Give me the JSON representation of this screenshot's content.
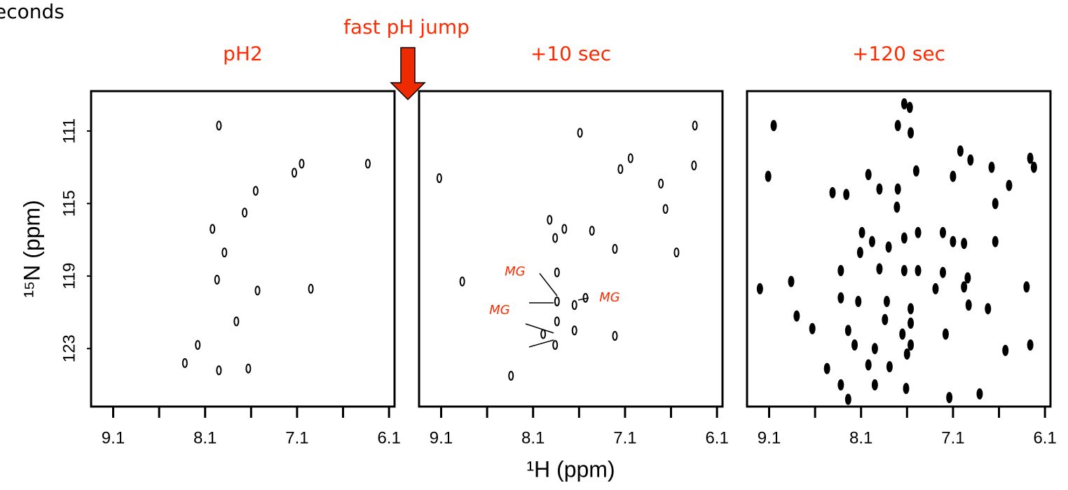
{
  "header_fragment": "econds",
  "annotation": "fast pH jump",
  "chart_data": [
    {
      "type": "scatter",
      "title": "pH2",
      "color": "#000000",
      "title_color": "#ff2a00",
      "ylabel": "¹⁵N (ppm)",
      "x": [
        7.95,
        7.05,
        7.13,
        6.33,
        7.55,
        7.67,
        8.02,
        7.89,
        7.97,
        7.53,
        6.95,
        7.76,
        8.18,
        8.32,
        7.95,
        7.63
      ],
      "y": [
        110.7,
        112.8,
        113.3,
        112.8,
        114.3,
        115.5,
        116.4,
        117.7,
        119.2,
        119.8,
        119.7,
        121.5,
        122.8,
        123.8,
        124.2,
        124.1
      ],
      "xlim": [
        9.34,
        6.04
      ],
      "ylim": [
        126.2,
        108.8
      ],
      "xticks": [
        9.1,
        8.1,
        7.1,
        6.1
      ],
      "xticks_minor": [
        8.6,
        7.6,
        6.6
      ],
      "yticks": [
        111,
        115,
        119,
        123
      ]
    },
    {
      "type": "scatter",
      "title": "+10 sec",
      "color": "#000000",
      "title_color": "#ff2a00",
      "xlabel": "¹H (ppm)",
      "x": [
        7.04,
        7.15,
        6.35,
        6.34,
        7.59,
        7.92,
        7.76,
        7.86,
        7.46,
        7.21,
        7.84,
        7.84,
        7.65,
        7.53,
        7.84,
        7.65,
        7.21,
        7.86,
        7.99,
        8.87,
        8.34,
        6.54,
        6.66,
        9.12,
        6.71
      ],
      "y": [
        112.5,
        113.1,
        112.9,
        110.7,
        111.1,
        115.9,
        116.4,
        116.9,
        116.5,
        117.5,
        118.8,
        120.4,
        120.6,
        120.2,
        121.5,
        122.0,
        122.3,
        122.8,
        122.2,
        119.3,
        124.5,
        117.7,
        115.3,
        113.6,
        113.9
      ],
      "xlim": [
        9.34,
        6.04
      ],
      "ylim": [
        126.2,
        108.8
      ],
      "xticks": [
        9.1,
        8.1,
        7.1,
        6.1
      ],
      "xticks_minor": [
        8.6,
        7.6,
        6.6
      ],
      "annotations": [
        "MG",
        "MG",
        "MG"
      ]
    },
    {
      "type": "scatter",
      "title": "+120 sec",
      "color": "#000000",
      "title_color": "#ff2a00",
      "x": [
        9.05,
        7.63,
        7.7,
        7.56,
        7.02,
        6.91,
        7.1,
        6.26,
        6.22,
        8.02,
        9.11,
        7.5,
        6.68,
        6.49,
        8.41,
        8.26,
        7.9,
        7.7,
        6.64,
        7.71,
        8.09,
        7.98,
        7.63,
        7.48,
        7.21,
        7.1,
        7.8,
        6.98,
        8.11,
        6.64,
        7.9,
        8.32,
        7.63,
        7.48,
        7.21,
        6.94,
        8.86,
        9.2,
        8.32,
        8.13,
        7.82,
        7.29,
        6.98,
        6.3,
        6.72,
        6.93,
        8.8,
        8.63,
        8.24,
        7.56,
        7.56,
        7.84,
        7.65,
        7.56,
        7.18,
        8.17,
        7.95,
        8.47,
        8.32,
        8.02,
        7.79,
        7.6,
        6.53,
        6.26,
        8.24,
        7.95,
        7.61,
        7.14,
        6.81,
        7.57
      ],
      "y": [
        110.7,
        109.5,
        110.7,
        111.1,
        112.1,
        112.6,
        113.5,
        112.5,
        113.0,
        113.4,
        113.5,
        113.2,
        113.0,
        114.0,
        114.4,
        114.5,
        114.2,
        114.2,
        115.0,
        115.2,
        116.6,
        117.1,
        116.9,
        116.6,
        116.6,
        117.1,
        117.4,
        117.2,
        117.7,
        117.1,
        118.6,
        118.7,
        118.7,
        118.7,
        118.8,
        119.1,
        119.3,
        119.7,
        120.2,
        120.4,
        120.4,
        119.7,
        119.6,
        119.6,
        120.8,
        120.6,
        121.2,
        121.9,
        122.0,
        120.8,
        121.6,
        121.4,
        122.2,
        122.8,
        122.2,
        122.8,
        123.0,
        124.1,
        125.0,
        123.9,
        124.0,
        123.3,
        123.1,
        122.8,
        125.8,
        125.0,
        125.2,
        125.7,
        125.5,
        109.7
      ],
      "xlim": [
        9.34,
        6.04
      ],
      "ylim": [
        126.2,
        108.8
      ],
      "xticks": [
        9.1,
        8.1,
        7.1,
        6.1
      ],
      "xticks_minor": [
        8.6,
        7.6,
        6.6
      ]
    }
  ]
}
